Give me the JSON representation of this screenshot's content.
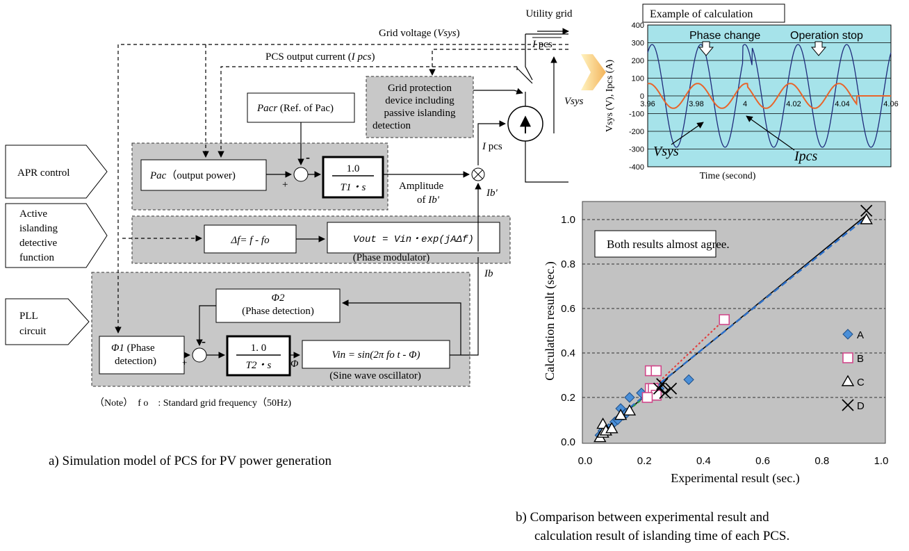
{
  "diagram": {
    "utility_grid": "Utility grid",
    "grid_voltage": "Grid voltage (",
    "grid_voltage_var": "Vsys",
    "grid_voltage_close": ")",
    "pcs_current": "PCS output current (",
    "pcs_current_var": "I pcs",
    "pcs_current_close": ")",
    "ipcs_top": "I",
    "ipcs_top_sub": "pcs",
    "vsys_right": "Vsys",
    "protection_lines": [
      "Grid protection",
      "device including",
      "passive islanding",
      "detection"
    ],
    "pacr_var": "Pacr",
    "pacr_rest": " (Ref. of Pac)",
    "apr_label": "APR control",
    "active_label": [
      "Active",
      "islanding",
      "detective",
      "function"
    ],
    "pll_label": [
      "PLL",
      "circuit"
    ],
    "pac_var": "Pac",
    "pac_rest": "（output power)",
    "minus": "-",
    "plus": "+",
    "t1_num": "1.0",
    "t1_den": "T1・s",
    "amplitude": [
      "Amplitude",
      "of "
    ],
    "amplitude_var": "Ib'",
    "ipcs_mid": "I pcs",
    "ib_prime": "Ib'",
    "df": "Δf= f - fo",
    "vout": "Vout = Vin・exp(jAΔf)",
    "phase_mod": "(Phase modulator)",
    "ib": "Ib",
    "phi2": "Φ2",
    "phase_det": "(Phase detection)",
    "phi1_var": "Φ1",
    "phi1_rest": " (Phase",
    "phi1_rest2": "detection)",
    "t2_num": "1. 0",
    "t2_den": "T2・s",
    "phi": "Φ",
    "vin": "Vin = sin(2π fo t - Φ)",
    "sine_osc": "(Sine wave oscillator)",
    "note": "（Note）　f o　: Standard grid frequency（50Hz)",
    "caption_a": "a) Simulation model of PCS for PV power generation",
    "caption_b": [
      "b)  Comparison between experimental result and",
      "calculation result of islanding time of each PCS."
    ]
  },
  "wave_chart": {
    "title": "Example of calculation",
    "phase_change": "Phase change",
    "operation_stop": "Operation stop",
    "ylabel": "Vsys (V), Ipcs (A)",
    "xlabel": "Time (second)",
    "yticks": [
      "400",
      "300",
      "200",
      "100",
      "0",
      "-100",
      "-200",
      "-300",
      "-400"
    ],
    "xticks": [
      "3.96",
      "3.98",
      "4",
      "4.02",
      "4.04",
      "4.06"
    ],
    "vsys_label": "Vsys",
    "ipcs_label": "Ipcs",
    "bg": "#A6E3EA",
    "vsys_color": "#1F2A7A",
    "ipcs_color": "#E8642A"
  },
  "chart_data": {
    "type": "scatter",
    "annotation": "Both results almost agree.",
    "xlabel": "Experimental result (sec.)",
    "ylabel": "Calculation result (sec.)",
    "xlim": [
      0,
      1.0
    ],
    "ylim": [
      0,
      1.05
    ],
    "xticks": [
      "0.0",
      "0.2",
      "0.4",
      "0.6",
      "0.8",
      "1.0"
    ],
    "yticks": [
      "0.0",
      "0.2",
      "0.4",
      "0.6",
      "0.8",
      "1.0"
    ],
    "background": "#C2C2C2",
    "legend_position": "right",
    "series": [
      {
        "name": "A",
        "marker": "diamond",
        "color": "#4A8FD8",
        "points": [
          [
            0.05,
            0.03
          ],
          [
            0.06,
            0.05
          ],
          [
            0.08,
            0.06
          ],
          [
            0.1,
            0.09
          ],
          [
            0.11,
            0.1
          ],
          [
            0.12,
            0.15
          ],
          [
            0.13,
            0.12
          ],
          [
            0.14,
            0.13
          ],
          [
            0.15,
            0.2
          ],
          [
            0.19,
            0.22
          ],
          [
            0.25,
            0.24
          ],
          [
            0.35,
            0.28
          ]
        ]
      },
      {
        "name": "B",
        "marker": "square",
        "color": "#D0488A",
        "points": [
          [
            0.22,
            0.32
          ],
          [
            0.24,
            0.32
          ],
          [
            0.22,
            0.24
          ],
          [
            0.23,
            0.24
          ],
          [
            0.24,
            0.21
          ],
          [
            0.21,
            0.2
          ],
          [
            0.47,
            0.55
          ]
        ]
      },
      {
        "name": "C",
        "marker": "triangle",
        "color": "#000000",
        "points": [
          [
            0.05,
            0.02
          ],
          [
            0.06,
            0.04
          ],
          [
            0.06,
            0.08
          ],
          [
            0.07,
            0.05
          ],
          [
            0.09,
            0.06
          ],
          [
            0.12,
            0.12
          ],
          [
            0.15,
            0.14
          ],
          [
            0.95,
            1.0
          ]
        ]
      },
      {
        "name": "D",
        "marker": "x",
        "color": "#000000",
        "points": [
          [
            0.25,
            0.24
          ],
          [
            0.27,
            0.22
          ],
          [
            0.29,
            0.24
          ],
          [
            0.26,
            0.26
          ],
          [
            0.95,
            1.04
          ]
        ]
      }
    ]
  }
}
